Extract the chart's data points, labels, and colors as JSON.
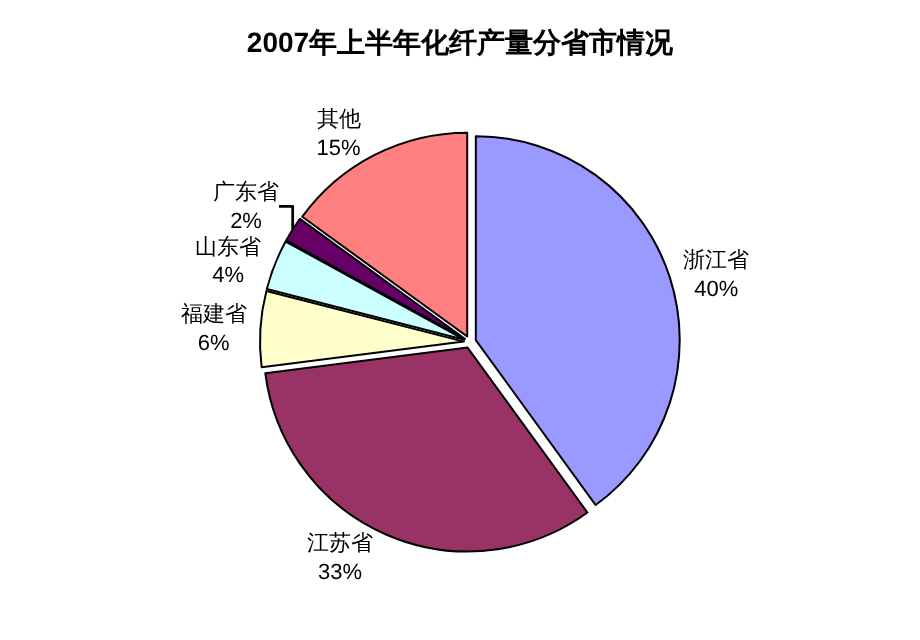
{
  "chart_data": {
    "type": "pie",
    "title": "2007年上半年化纤产量分省市情况",
    "categories": [
      "浙江省",
      "江苏省",
      "福建省",
      "山东省",
      "广东省",
      "其他"
    ],
    "values": [
      40,
      33,
      6,
      4,
      2,
      15
    ],
    "value_labels": [
      "40%",
      "33%",
      "6%",
      "4%",
      "2%",
      "15%"
    ],
    "colors": [
      "#9999ff",
      "#993366",
      "#ffffcc",
      "#ccffff",
      "#660066",
      "#ff8080"
    ],
    "legend": false
  }
}
